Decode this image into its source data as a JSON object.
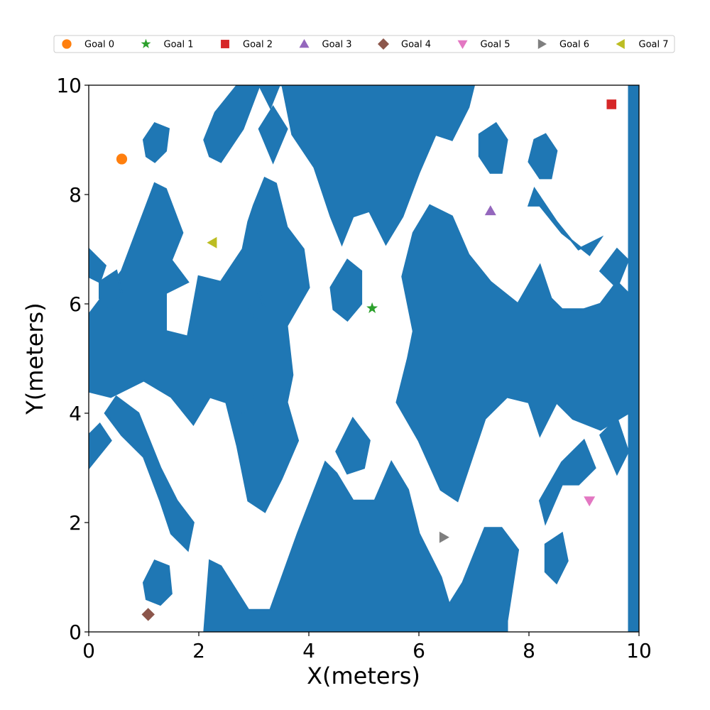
{
  "chart_data": {
    "type": "scatter",
    "title": "",
    "xlabel": "X(meters)",
    "ylabel": "Y(meters)",
    "xlim": [
      0,
      10
    ],
    "ylim": [
      0,
      10
    ],
    "x_ticks": [
      "0",
      "2",
      "4",
      "6",
      "8",
      "10"
    ],
    "y_ticks": [
      "0",
      "2",
      "4",
      "6",
      "8",
      "10"
    ],
    "grid": false,
    "legend_position": "top",
    "obstacle_color": "#1f77b4",
    "background_color": "#ffffff",
    "series": [
      {
        "name": "Goal 0",
        "marker": "circle",
        "color": "#ff7f0e",
        "x": 0.6,
        "y": 8.65
      },
      {
        "name": "Goal 1",
        "marker": "star",
        "color": "#2ca02c",
        "x": 5.15,
        "y": 5.92
      },
      {
        "name": "Goal 2",
        "marker": "square",
        "color": "#d62728",
        "x": 9.5,
        "y": 9.65
      },
      {
        "name": "Goal 3",
        "marker": "triangle-up",
        "color": "#9467bd",
        "x": 7.3,
        "y": 7.7
      },
      {
        "name": "Goal 4",
        "marker": "diamond",
        "color": "#8c564b",
        "x": 1.08,
        "y": 0.32
      },
      {
        "name": "Goal 5",
        "marker": "triangle-down",
        "color": "#e377c2",
        "x": 9.1,
        "y": 2.4
      },
      {
        "name": "Goal 6",
        "marker": "triangle-right",
        "color": "#7f7f7f",
        "x": 6.45,
        "y": 1.73
      },
      {
        "name": "Goal 7",
        "marker": "triangle-left",
        "color": "#bcbd22",
        "x": 2.25,
        "y": 7.12
      }
    ],
    "obstacles": [
      {
        "kind": "rect",
        "pts": [
          [
            9.8,
            10
          ],
          [
            10,
            0
          ]
        ]
      },
      {
        "kind": "poly",
        "pts": [
          [
            2.1,
            0
          ],
          [
            2.2,
            1.3
          ],
          [
            2.4,
            1.2
          ],
          [
            2.9,
            0.4
          ],
          [
            3.3,
            0.4
          ],
          [
            3.8,
            1.8
          ],
          [
            4.3,
            3.1
          ],
          [
            4.5,
            2.9
          ],
          [
            4.8,
            2.4
          ],
          [
            5.2,
            2.4
          ],
          [
            5.5,
            3.1
          ],
          [
            5.8,
            2.6
          ],
          [
            6.0,
            1.8
          ],
          [
            6.4,
            1.0
          ],
          [
            6.55,
            0.5
          ],
          [
            6.8,
            0.9
          ],
          [
            7.2,
            1.9
          ],
          [
            7.5,
            1.9
          ],
          [
            7.8,
            1.5
          ],
          [
            7.6,
            0.2
          ],
          [
            7.6,
            0
          ]
        ]
      },
      {
        "kind": "poly",
        "pts": [
          [
            3.1,
            10
          ],
          [
            3.3,
            9.6
          ],
          [
            3.5,
            10.1
          ],
          [
            3.7,
            9.1
          ],
          [
            4.1,
            8.5
          ],
          [
            4.4,
            7.6
          ],
          [
            4.6,
            7.1
          ],
          [
            4.8,
            7.6
          ],
          [
            5.1,
            7.7
          ],
          [
            5.4,
            7.1
          ],
          [
            5.7,
            7.6
          ],
          [
            6.0,
            8.4
          ],
          [
            6.3,
            9.1
          ],
          [
            6.6,
            9.0
          ],
          [
            6.9,
            9.6
          ],
          [
            7.0,
            10
          ]
        ]
      },
      {
        "kind": "poly",
        "pts": [
          [
            2.1,
            9.0
          ],
          [
            2.3,
            9.5
          ],
          [
            2.7,
            10
          ],
          [
            3.1,
            10
          ],
          [
            2.8,
            9.2
          ],
          [
            2.4,
            8.6
          ],
          [
            2.2,
            8.7
          ]
        ]
      },
      {
        "kind": "poly",
        "pts": [
          [
            3.1,
            9.2
          ],
          [
            3.35,
            9.6
          ],
          [
            3.6,
            9.2
          ],
          [
            3.35,
            8.6
          ]
        ]
      },
      {
        "kind": "poly",
        "pts": [
          [
            1.0,
            9.0
          ],
          [
            1.2,
            9.3
          ],
          [
            1.45,
            9.2
          ],
          [
            1.4,
            8.8
          ],
          [
            1.2,
            8.6
          ],
          [
            1.05,
            8.7
          ]
        ]
      },
      {
        "kind": "poly",
        "pts": [
          [
            0,
            5.8
          ],
          [
            0.6,
            6.6
          ],
          [
            1.2,
            8.2
          ],
          [
            1.4,
            8.1
          ],
          [
            1.7,
            7.3
          ],
          [
            1.5,
            6.8
          ],
          [
            1.8,
            6.4
          ],
          [
            1.4,
            6.2
          ],
          [
            1.4,
            5.5
          ],
          [
            1.8,
            5.4
          ],
          [
            2.0,
            6.5
          ],
          [
            2.4,
            6.4
          ],
          [
            2.8,
            7.0
          ],
          [
            2.9,
            7.5
          ],
          [
            3.0,
            7.8
          ],
          [
            3.2,
            8.3
          ],
          [
            3.4,
            8.2
          ],
          [
            3.6,
            7.4
          ],
          [
            3.9,
            7.0
          ],
          [
            4.0,
            6.3
          ],
          [
            3.6,
            5.6
          ],
          [
            3.7,
            4.7
          ],
          [
            3.6,
            4.2
          ],
          [
            3.8,
            3.5
          ],
          [
            3.5,
            2.8
          ],
          [
            3.2,
            2.2
          ],
          [
            2.9,
            2.4
          ],
          [
            2.7,
            3.4
          ],
          [
            2.5,
            4.2
          ],
          [
            2.2,
            4.3
          ],
          [
            1.9,
            3.8
          ],
          [
            1.5,
            4.3
          ],
          [
            1.0,
            4.6
          ],
          [
            0.4,
            4.3
          ],
          [
            0,
            4.4
          ]
        ]
      },
      {
        "kind": "poly",
        "pts": [
          [
            0,
            7.0
          ],
          [
            0.3,
            6.7
          ],
          [
            0.2,
            6.4
          ],
          [
            0,
            6.5
          ]
        ]
      },
      {
        "kind": "poly",
        "pts": [
          [
            0.2,
            6.4
          ],
          [
            0.5,
            6.6
          ],
          [
            0.6,
            6.2
          ],
          [
            0.4,
            5.9
          ],
          [
            0.2,
            6.1
          ]
        ]
      },
      {
        "kind": "poly",
        "pts": [
          [
            0.3,
            4.0
          ],
          [
            0.5,
            4.3
          ],
          [
            0.9,
            4.0
          ],
          [
            1.3,
            3.0
          ],
          [
            1.6,
            2.4
          ],
          [
            1.9,
            2.0
          ],
          [
            1.8,
            1.5
          ],
          [
            1.5,
            1.8
          ],
          [
            1.3,
            2.4
          ],
          [
            1.0,
            3.2
          ],
          [
            0.6,
            3.6
          ]
        ]
      },
      {
        "kind": "poly",
        "pts": [
          [
            0,
            3.0
          ],
          [
            0.4,
            3.5
          ],
          [
            0.2,
            3.8
          ],
          [
            0,
            3.6
          ]
        ]
      },
      {
        "kind": "poly",
        "pts": [
          [
            1.0,
            0.9
          ],
          [
            1.2,
            1.3
          ],
          [
            1.45,
            1.2
          ],
          [
            1.5,
            0.7
          ],
          [
            1.3,
            0.5
          ],
          [
            1.05,
            0.6
          ]
        ]
      },
      {
        "kind": "poly",
        "pts": [
          [
            4.4,
            6.3
          ],
          [
            4.7,
            6.8
          ],
          [
            4.95,
            6.6
          ],
          [
            4.95,
            6.0
          ],
          [
            4.7,
            5.7
          ],
          [
            4.45,
            5.9
          ]
        ]
      },
      {
        "kind": "poly",
        "pts": [
          [
            4.5,
            3.3
          ],
          [
            4.8,
            3.9
          ],
          [
            5.1,
            3.5
          ],
          [
            5.0,
            3.0
          ],
          [
            4.7,
            2.9
          ]
        ]
      },
      {
        "kind": "poly",
        "pts": [
          [
            5.9,
            5.5
          ],
          [
            5.7,
            6.5
          ],
          [
            5.9,
            7.3
          ],
          [
            6.2,
            7.8
          ],
          [
            6.6,
            7.6
          ],
          [
            6.9,
            6.9
          ],
          [
            7.3,
            6.4
          ],
          [
            7.8,
            6.0
          ],
          [
            8.2,
            6.7
          ],
          [
            8.4,
            6.1
          ],
          [
            8.6,
            5.9
          ],
          [
            9.0,
            5.9
          ],
          [
            9.3,
            6.0
          ],
          [
            9.6,
            6.4
          ],
          [
            9.8,
            6.2
          ],
          [
            9.8,
            4.0
          ],
          [
            9.3,
            3.7
          ],
          [
            8.8,
            3.9
          ],
          [
            8.5,
            4.2
          ],
          [
            8.2,
            3.6
          ],
          [
            8.0,
            4.2
          ],
          [
            7.6,
            4.3
          ],
          [
            7.2,
            3.9
          ],
          [
            6.9,
            3.0
          ],
          [
            6.7,
            2.4
          ],
          [
            6.4,
            2.6
          ],
          [
            6.0,
            3.5
          ],
          [
            5.6,
            4.2
          ],
          [
            5.8,
            5.0
          ]
        ]
      },
      {
        "kind": "poly",
        "pts": [
          [
            8.1,
            8.1
          ],
          [
            8.5,
            7.5
          ],
          [
            8.9,
            7.0
          ],
          [
            9.3,
            7.2
          ],
          [
            9.1,
            6.9
          ],
          [
            8.6,
            7.3
          ],
          [
            8.2,
            7.8
          ],
          [
            8.0,
            7.8
          ]
        ]
      },
      {
        "kind": "poly",
        "pts": [
          [
            9.3,
            6.6
          ],
          [
            9.6,
            7.0
          ],
          [
            9.8,
            6.8
          ],
          [
            9.6,
            6.3
          ]
        ]
      },
      {
        "kind": "poly",
        "pts": [
          [
            8.1,
            9.0
          ],
          [
            8.3,
            9.1
          ],
          [
            8.5,
            8.8
          ],
          [
            8.4,
            8.3
          ],
          [
            8.2,
            8.3
          ],
          [
            8.0,
            8.6
          ]
        ]
      },
      {
        "kind": "poly",
        "pts": [
          [
            7.1,
            9.1
          ],
          [
            7.4,
            9.3
          ],
          [
            7.6,
            9.0
          ],
          [
            7.5,
            8.4
          ],
          [
            7.3,
            8.4
          ],
          [
            7.1,
            8.7
          ]
        ]
      },
      {
        "kind": "poly",
        "pts": [
          [
            8.2,
            2.4
          ],
          [
            8.6,
            3.1
          ],
          [
            9.0,
            3.5
          ],
          [
            9.2,
            3.0
          ],
          [
            8.9,
            2.7
          ],
          [
            8.6,
            2.7
          ],
          [
            8.3,
            2.0
          ]
        ]
      },
      {
        "kind": "poly",
        "pts": [
          [
            9.3,
            3.6
          ],
          [
            9.6,
            3.9
          ],
          [
            9.8,
            3.3
          ],
          [
            9.6,
            2.9
          ]
        ]
      },
      {
        "kind": "poly",
        "pts": [
          [
            8.3,
            1.6
          ],
          [
            8.6,
            1.8
          ],
          [
            8.7,
            1.3
          ],
          [
            8.5,
            0.9
          ],
          [
            8.3,
            1.1
          ]
        ]
      },
      {
        "kind": "poly",
        "pts": [
          [
            2.9,
            6.0
          ],
          [
            3.1,
            6.2
          ],
          [
            3.2,
            5.9
          ],
          [
            3.0,
            5.7
          ]
        ]
      },
      {
        "kind": "poly",
        "pts": [
          [
            2.8,
            4.0
          ],
          [
            3.0,
            4.3
          ],
          [
            3.2,
            4.0
          ],
          [
            3.0,
            3.8
          ]
        ]
      }
    ]
  }
}
